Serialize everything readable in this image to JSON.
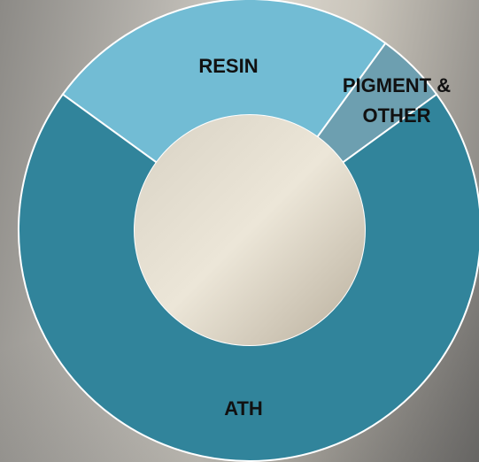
{
  "chart_data": {
    "type": "donut",
    "categories": [
      "RESIN",
      "PIGMENT & OTHER",
      "ATH"
    ],
    "values": [
      25,
      5,
      70
    ],
    "colors": [
      "#72bcd4",
      "#6d9fb0",
      "#31849b"
    ]
  }
}
